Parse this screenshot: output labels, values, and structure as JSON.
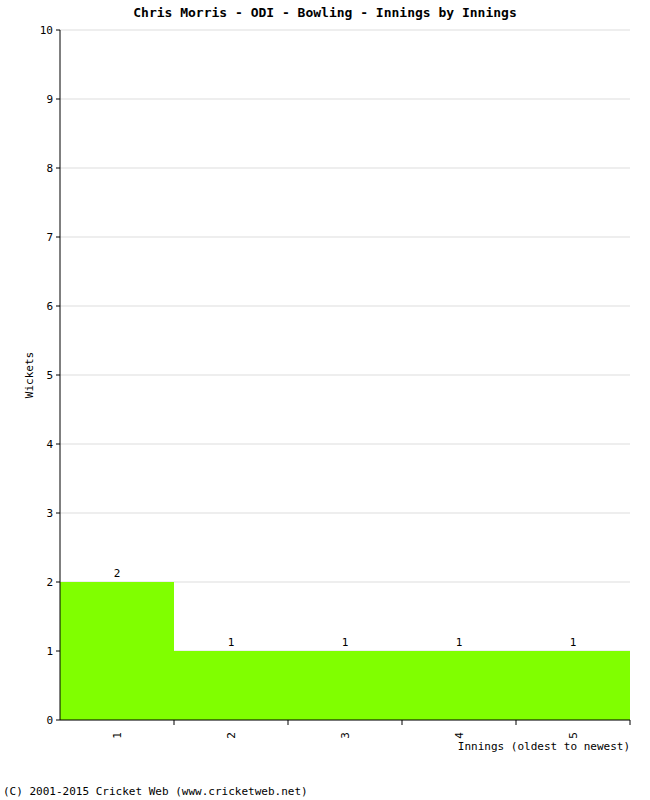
{
  "chart_data": {
    "type": "bar",
    "title": "Chris Morris - ODI - Bowling - Innings by Innings",
    "x_label": "Innings (oldest to newest)",
    "y_label": "Wickets",
    "categories": [
      "1",
      "2",
      "3",
      "4",
      "5"
    ],
    "values": [
      2,
      1,
      1,
      1,
      1
    ],
    "color": "#80ff00",
    "ylim": [
      0,
      10
    ],
    "yticks": [
      0,
      1,
      2,
      3,
      4,
      5,
      6,
      7,
      8,
      9,
      10
    ],
    "grid": true,
    "data_labels": true,
    "annotations": [
      "(C) 2001-2015 Cricket Web (www.cricketweb.net)"
    ]
  }
}
